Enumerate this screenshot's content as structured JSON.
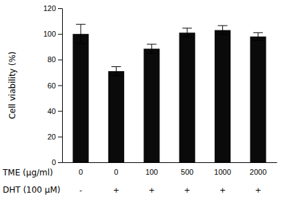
{
  "chart_data": {
    "type": "bar",
    "categories": [
      "0",
      "0",
      "100",
      "500",
      "1000",
      "2000"
    ],
    "xlabel": "TME (μg/ml)",
    "categories2": [
      "-",
      "+",
      "+",
      "+",
      "+",
      "+"
    ],
    "xlabel2": "DHT (100 μM)",
    "values": [
      100,
      71,
      88.5,
      101,
      103,
      98
    ],
    "errors": [
      7.5,
      3.5,
      3.5,
      3.5,
      3.5,
      3.0
    ],
    "color": "#0a0a0a",
    "ylabel": "Cell viability (%)",
    "ylim": [
      0,
      120
    ],
    "yticks": [
      0,
      20,
      40,
      60,
      80,
      100,
      120
    ],
    "grid": false
  }
}
